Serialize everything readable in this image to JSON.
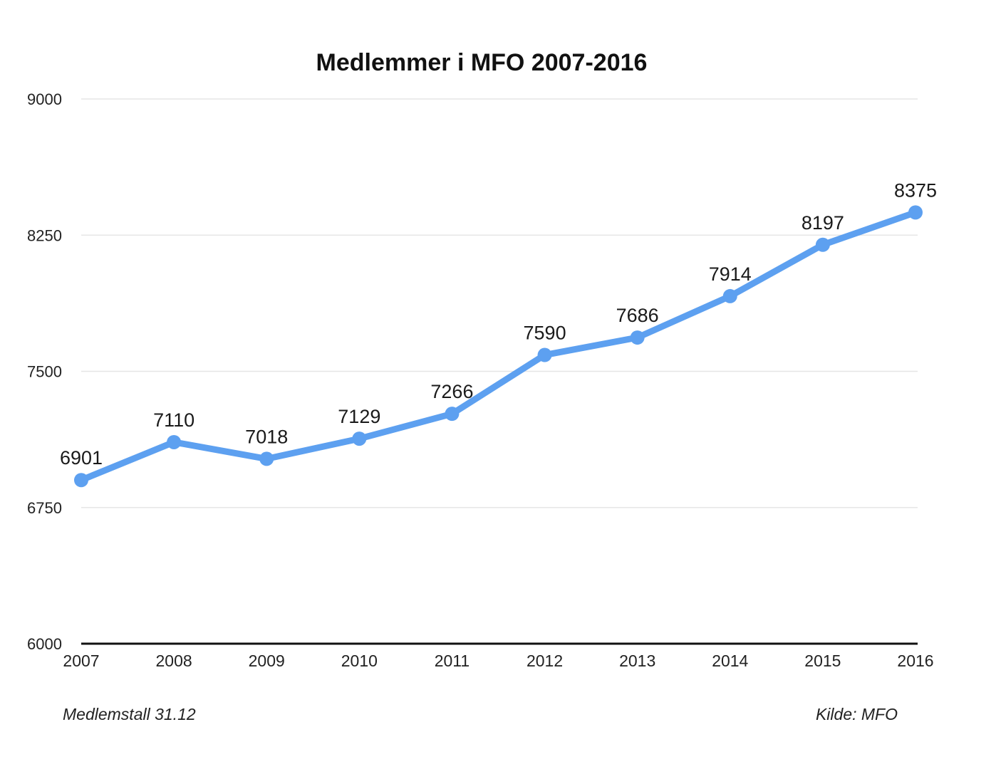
{
  "chart_data": {
    "type": "line",
    "title": "Medlemmer i MFO 2007-2016",
    "categories": [
      "2007",
      "2008",
      "2009",
      "2010",
      "2011",
      "2012",
      "2013",
      "2014",
      "2015",
      "2016"
    ],
    "series": [
      {
        "values": [
          6901,
          7110,
          7018,
          7129,
          7266,
          7590,
          7686,
          7914,
          8197,
          8375
        ],
        "color": "#5da0f0"
      }
    ],
    "yticks": [
      9000,
      8250,
      7500,
      6750,
      6000
    ],
    "ylim": [
      6000,
      9000
    ],
    "grid": true,
    "data_labels": true,
    "footnote_left": "Medlemstall 31.12",
    "footnote_right": "Kilde: MFO"
  }
}
